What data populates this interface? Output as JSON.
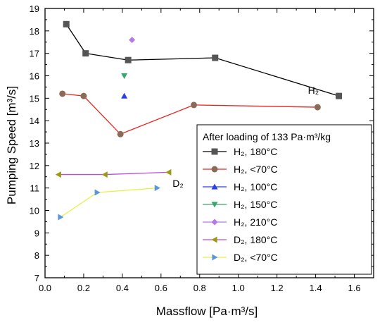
{
  "chart_data": {
    "type": "scatter",
    "xlabel": "Massflow [Pa·m³/s]",
    "ylabel": "Pumping Speed [m³/s]",
    "xlim": [
      0.0,
      1.7
    ],
    "ylim": [
      7,
      19
    ],
    "x_ticks": [
      "0.0",
      "0.2",
      "0.4",
      "0.6",
      "0.8",
      "1.0",
      "1.2",
      "1.4",
      "1.6"
    ],
    "y_ticks": [
      "7",
      "8",
      "9",
      "10",
      "11",
      "12",
      "13",
      "14",
      "15",
      "16",
      "17",
      "18",
      "19"
    ],
    "grid": false,
    "legend": {
      "title": "After loading of 133 Pa·m³/kg",
      "placement": "bottom-right"
    },
    "annotations": [
      {
        "text": "H₂",
        "x": 1.36,
        "y": 15.2
      },
      {
        "text": "D₂",
        "x": 0.66,
        "y": 11.05
      }
    ],
    "series": [
      {
        "name": "H₂, 180°C",
        "marker": "square",
        "color": "#555555",
        "line_color": "#000000",
        "lines": true,
        "x": [
          0.11,
          0.21,
          0.43,
          0.88,
          1.52
        ],
        "y": [
          18.3,
          17.0,
          16.7,
          16.8,
          15.1
        ]
      },
      {
        "name": "H₂, <70°C",
        "marker": "circle",
        "color": "#8b6a58",
        "line_color": "#e8231e",
        "lines": true,
        "x": [
          0.09,
          0.2,
          0.39,
          0.77,
          1.41
        ],
        "y": [
          15.2,
          15.1,
          13.4,
          14.7,
          14.6
        ]
      },
      {
        "name": "H₂, 100°C",
        "marker": "triangle-up",
        "color": "#2a3fe5",
        "line_color": "#2a3fe5",
        "lines": false,
        "x": [
          0.41
        ],
        "y": [
          15.1
        ]
      },
      {
        "name": "H₂, 150°C",
        "marker": "triangle-down",
        "color": "#3aa66a",
        "line_color": "#3aa66a",
        "lines": false,
        "x": [
          0.41
        ],
        "y": [
          16.0
        ]
      },
      {
        "name": "H₂, 210°C",
        "marker": "diamond",
        "color": "#b57ae3",
        "line_color": "#b57ae3",
        "lines": false,
        "x": [
          0.45
        ],
        "y": [
          17.6
        ]
      },
      {
        "name": "D₂, 180°C",
        "marker": "triangle-left",
        "color": "#9b9a16",
        "line_color": "#b84fd6",
        "lines": true,
        "x": [
          0.07,
          0.31,
          0.64
        ],
        "y": [
          11.6,
          11.6,
          11.7
        ]
      },
      {
        "name": "D₂, <70°C",
        "marker": "triangle-right",
        "color": "#5b97d9",
        "line_color": "#e6f04a",
        "lines": true,
        "x": [
          0.08,
          0.27,
          0.58
        ],
        "y": [
          9.7,
          10.8,
          11.0
        ]
      }
    ]
  }
}
